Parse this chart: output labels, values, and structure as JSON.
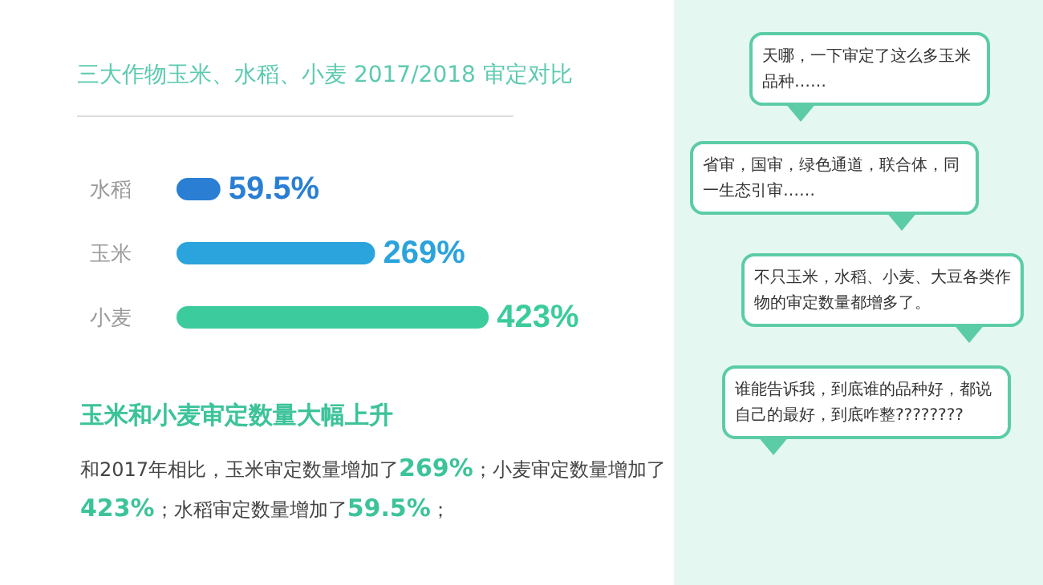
{
  "chart_data": {
    "type": "bar",
    "orientation": "horizontal",
    "title": "三大作物玉米、水稻、小麦 2017/2018 审定对比",
    "categories": [
      "水稻",
      "玉米",
      "小麦"
    ],
    "values": [
      59.5,
      269,
      423
    ],
    "colors": [
      "#2a7fd4",
      "#2ba3dc",
      "#3ccb9c"
    ],
    "value_labels": [
      "59.5%",
      "269%",
      "423%"
    ],
    "annotations": [
      "玉米和小麦审定数量大幅上升",
      "和2017年相比，玉米审定数量增加了269%；小麦审定数量增加了423%；水稻审定数量增加了59.5%；",
      "天哪，一下审定了这么多玉米品种……",
      "省审，国审，绿色通道，联合体，同一生态引审……",
      "不只玉米，水稻、小麦、大豆各类作物的审定数量都增多了。",
      "谁能告诉我，到底谁的品种好，都说自己的最好，到底咋整????????"
    ]
  }
}
